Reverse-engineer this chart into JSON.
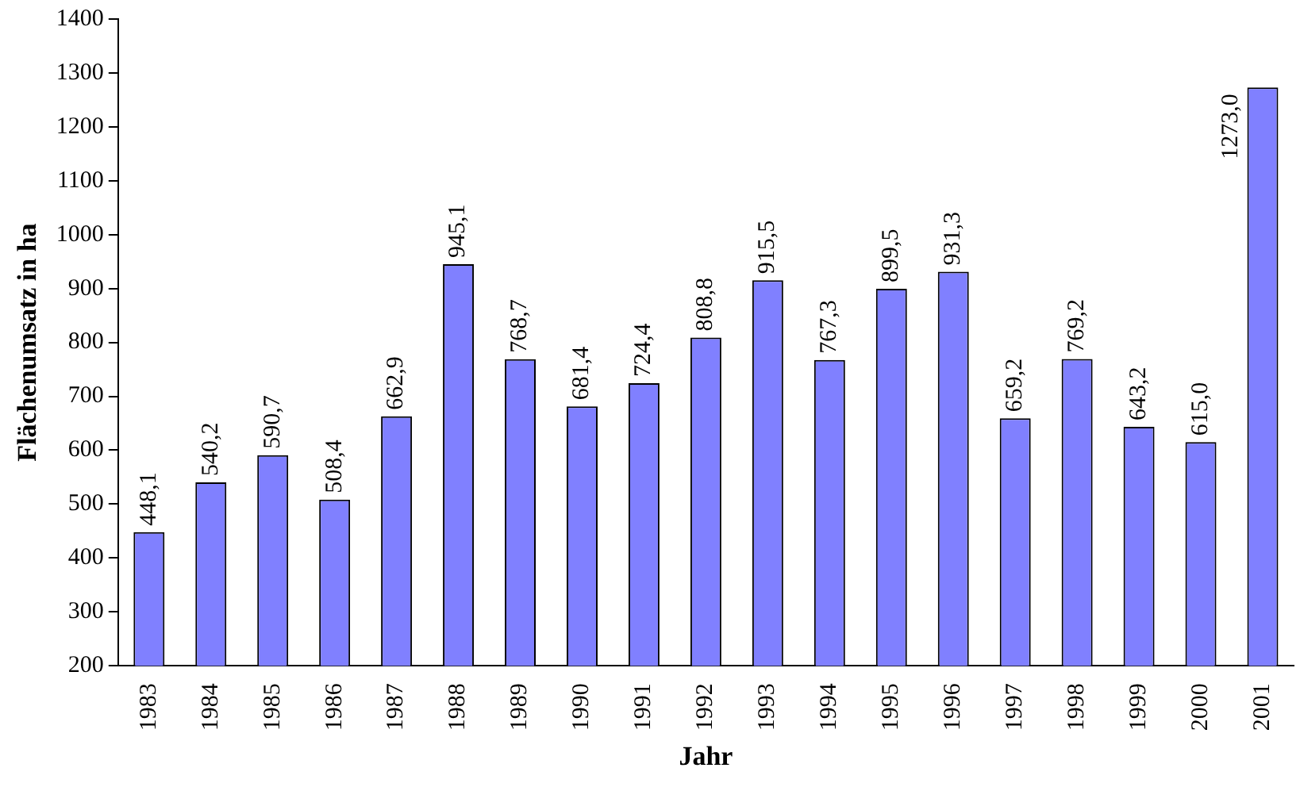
{
  "chart_data": {
    "type": "bar",
    "xlabel": "Jahr",
    "ylabel": "Flächenumsatz in ha",
    "categories": [
      "1983",
      "1984",
      "1985",
      "1986",
      "1987",
      "1988",
      "1989",
      "1990",
      "1991",
      "1992",
      "1993",
      "1994",
      "1995",
      "1996",
      "1997",
      "1998",
      "1999",
      "2000",
      "2001"
    ],
    "values": [
      448.1,
      540.2,
      590.7,
      508.4,
      662.9,
      945.1,
      768.7,
      681.4,
      724.4,
      808.8,
      915.5,
      767.3,
      899.5,
      931.3,
      659.2,
      769.2,
      643.2,
      615.0,
      1273.0
    ],
    "value_labels": [
      "448,1",
      "540,2",
      "590,7",
      "508,4",
      "662,9",
      "945,1",
      "768,7",
      "681,4",
      "724,4",
      "808,8",
      "915,5",
      "767,3",
      "899,5",
      "931,3",
      "659,2",
      "769,2",
      "643,2",
      "615,0",
      "1273,0"
    ],
    "color": "#8080ff",
    "ylim": [
      200,
      1400
    ],
    "yticks": [
      200,
      300,
      400,
      500,
      600,
      700,
      800,
      900,
      1000,
      1100,
      1200,
      1300,
      1400
    ],
    "grid": false,
    "legend": false
  }
}
